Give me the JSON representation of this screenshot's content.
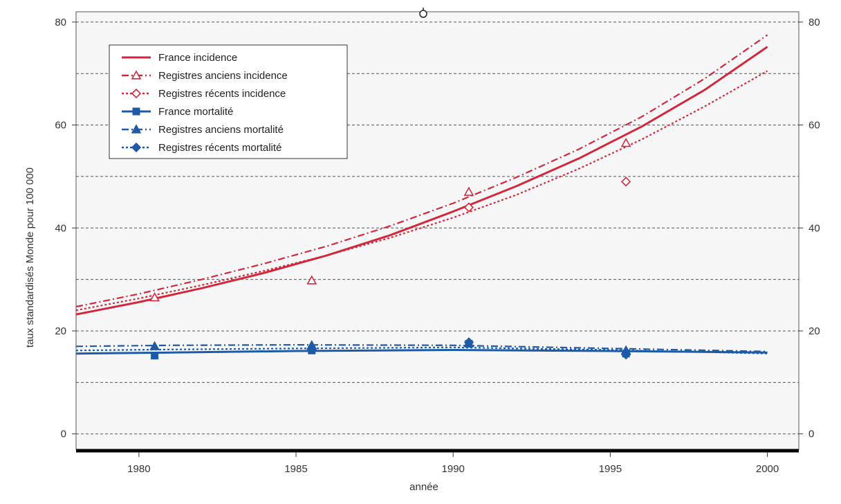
{
  "chart_data": {
    "type": "line",
    "xlabel": "année",
    "ylabel": "taux standardisés Monde pour 100 000",
    "xlim": [
      1978,
      2001
    ],
    "ylim": [
      -3,
      82
    ],
    "x_ticks": [
      1980,
      1985,
      1990,
      1995,
      2000
    ],
    "y_ticks": [
      0,
      20,
      40,
      60,
      80
    ],
    "y_gridlines": [
      0,
      10,
      20,
      30,
      40,
      50,
      60,
      70,
      80
    ],
    "grid": "horizontal dashed",
    "right_axis": true,
    "legend_position": "top-left",
    "colors": {
      "incidence": "#d0283c",
      "mortality": "#1f5aa6"
    },
    "series": [
      {
        "name": "France incidence",
        "style": "solid",
        "color": "#d0283c",
        "marker": "none",
        "x": [
          1978,
          1980,
          1982,
          1984,
          1986,
          1988,
          1990,
          1992,
          1994,
          1996,
          1998,
          2000
        ],
        "y": [
          23.2,
          25.6,
          28.3,
          31.3,
          34.7,
          38.6,
          43.2,
          48.1,
          53.5,
          59.7,
          66.8,
          75.2
        ],
        "points_x": [],
        "points_y": []
      },
      {
        "name": "Registres anciens incidence",
        "style": "dashdot",
        "color": "#d0283c",
        "marker": "triangle-open",
        "x": [
          1978,
          1980,
          1982,
          1984,
          1986,
          1988,
          1990,
          1992,
          1994,
          1996,
          1998,
          2000
        ],
        "y": [
          24.7,
          27.2,
          30.0,
          33.1,
          36.5,
          40.4,
          44.8,
          49.8,
          55.3,
          61.6,
          69.0,
          77.5
        ],
        "points_x": [
          1980.5,
          1985.5,
          1990.5,
          1995.5
        ],
        "points_y": [
          26.5,
          29.8,
          47.0,
          56.5
        ]
      },
      {
        "name": "Registres récents incidence",
        "style": "dotted",
        "color": "#d0283c",
        "marker": "diamond-open",
        "x": [
          1978,
          1980,
          1982,
          1984,
          1986,
          1988,
          1990,
          1992,
          1994,
          1996,
          1998,
          2000
        ],
        "y": [
          24.0,
          26.3,
          28.9,
          31.7,
          34.7,
          38.1,
          42.0,
          46.4,
          51.5,
          57.2,
          63.6,
          70.5
        ],
        "points_x": [
          1990.5,
          1995.5
        ],
        "points_y": [
          44.0,
          49.0
        ]
      },
      {
        "name": "France mortalité",
        "style": "solid",
        "color": "#1f5aa6",
        "marker": "square",
        "x": [
          1978,
          1981,
          1985,
          1990,
          1995,
          2000
        ],
        "y": [
          15.6,
          15.8,
          16.1,
          16.3,
          16.1,
          15.8
        ],
        "points_x": [
          1980.5,
          1985.5,
          1990.5,
          1995.5
        ],
        "points_y": [
          15.2,
          16.2,
          17.5,
          15.6
        ]
      },
      {
        "name": "Registres anciens mortalité",
        "style": "dashdot",
        "color": "#1f5aa6",
        "marker": "triangle-filled",
        "x": [
          1978,
          1981,
          1985,
          1990,
          1995,
          2000
        ],
        "y": [
          17.0,
          17.2,
          17.3,
          17.2,
          16.6,
          16.0
        ],
        "points_x": [
          1980.5,
          1985.5,
          1990.5,
          1995.5
        ],
        "points_y": [
          17.0,
          17.2,
          17.6,
          16.2
        ]
      },
      {
        "name": "Registres récents mortalité",
        "style": "dotted",
        "color": "#1f5aa6",
        "marker": "diamond-filled",
        "x": [
          1978,
          1981,
          1985,
          1990,
          1995,
          2000
        ],
        "y": [
          16.2,
          16.4,
          16.6,
          16.8,
          16.3,
          15.6
        ],
        "points_x": [
          1985.5,
          1990.5,
          1995.5
        ],
        "points_y": [
          16.4,
          17.8,
          15.4
        ]
      }
    ]
  }
}
